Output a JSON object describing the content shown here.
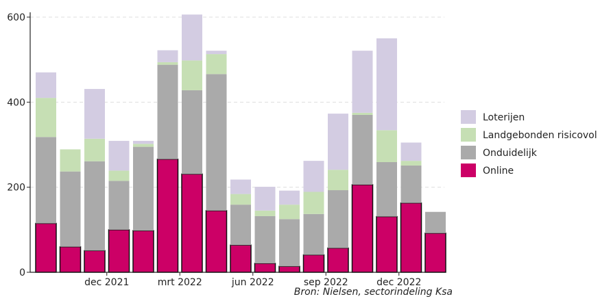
{
  "chart_data": {
    "type": "bar",
    "stacked": true,
    "ylim": [
      0,
      600
    ],
    "yticks": [
      0,
      200,
      400,
      600
    ],
    "grid": "horizontal-dashed",
    "legend_position": "right",
    "source": "Bron: Nielsen, sectorindeling Ksa",
    "categories": [
      "2021-09",
      "2021-10",
      "2021-11",
      "2021-12",
      "2022-01",
      "2022-02",
      "2022-03",
      "2022-04",
      "2022-05",
      "2022-06",
      "2022-07",
      "2022-08",
      "2022-09",
      "2022-10",
      "2022-11",
      "2022-12",
      "2023-01",
      "2023-02"
    ],
    "x_tick_labels": [
      {
        "index": 2,
        "label": "dec 2021"
      },
      {
        "index": 5,
        "label": "mrt 2022"
      },
      {
        "index": 8,
        "label": "jun 2022"
      },
      {
        "index": 11,
        "label": "sep 2022"
      },
      {
        "index": 14,
        "label": "dec 2022"
      }
    ],
    "series": [
      {
        "name": "Online",
        "color": "#cc0066",
        "values": [
          115,
          60,
          51,
          100,
          98,
          266,
          231,
          145,
          64,
          21,
          14,
          41,
          57,
          206,
          131,
          163,
          92,
          0
        ]
      },
      {
        "name": "Onduidelijk",
        "color": "#aaaaaa",
        "values": [
          203,
          177,
          210,
          115,
          197,
          222,
          197,
          321,
          95,
          111,
          111,
          96,
          136,
          164,
          128,
          88,
          50,
          0
        ]
      },
      {
        "name": "Landgebonden risicovol",
        "color": "#c6dfb4",
        "values": [
          92,
          52,
          53,
          24,
          7,
          6,
          70,
          47,
          25,
          13,
          34,
          52,
          48,
          5,
          75,
          11,
          0,
          0
        ]
      },
      {
        "name": "Loterijen",
        "color": "#d3cce2",
        "values": [
          60,
          0,
          117,
          70,
          7,
          28,
          108,
          8,
          34,
          56,
          33,
          73,
          132,
          146,
          216,
          43,
          0,
          0
        ]
      }
    ],
    "legend_order": [
      "Loterijen",
      "Landgebonden risicovol",
      "Onduidelijk",
      "Online"
    ]
  }
}
